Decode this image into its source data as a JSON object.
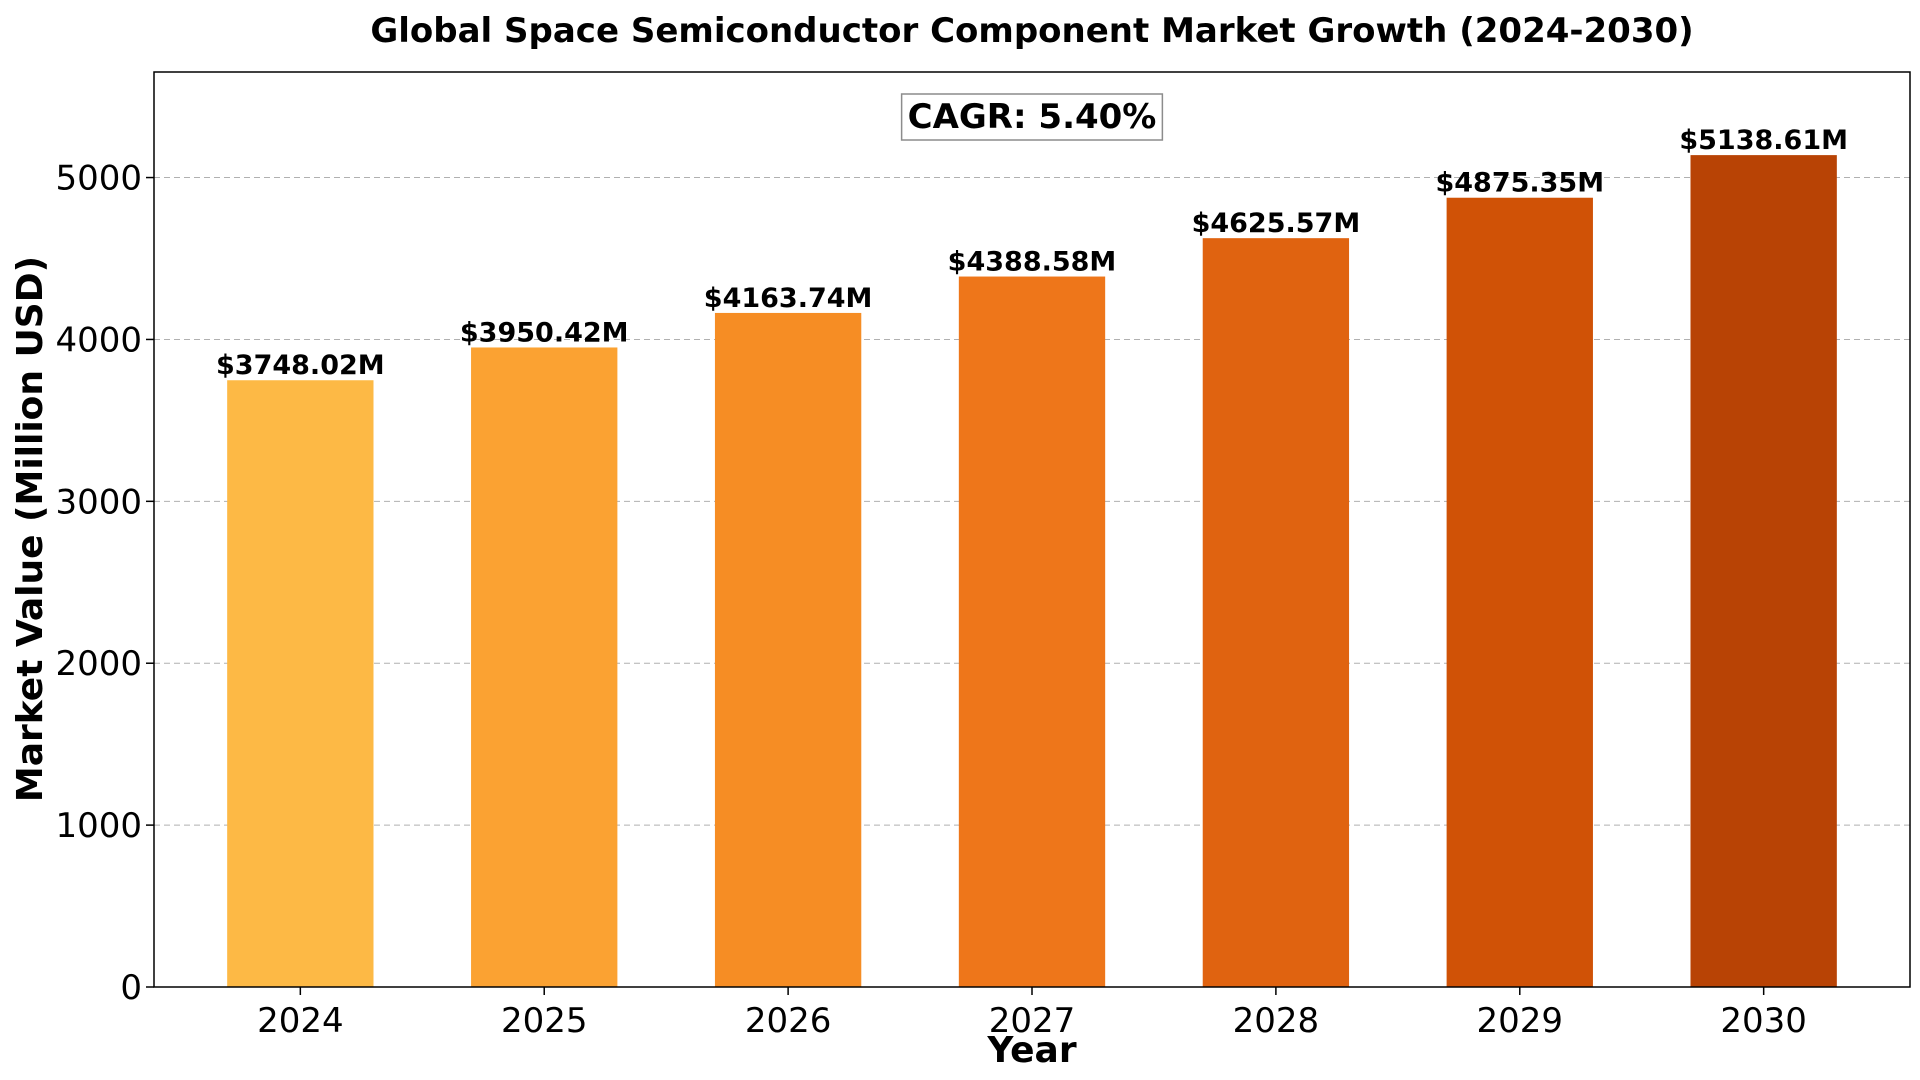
{
  "chart_data": {
    "type": "bar",
    "title": "Global Space Semiconductor Component Market Growth (2024-2030)",
    "xlabel": "Year",
    "ylabel": "Market Value (Million USD)",
    "categories": [
      "2024",
      "2025",
      "2026",
      "2027",
      "2028",
      "2029",
      "2030"
    ],
    "values": [
      3748.02,
      3950.42,
      4163.74,
      4388.58,
      4625.57,
      4875.35,
      5138.61
    ],
    "value_labels": [
      "$3748.02M",
      "$3950.42M",
      "$4163.74M",
      "$4388.58M",
      "$4625.57M",
      "$4875.35M",
      "$5138.61M"
    ],
    "bar_colors": [
      "#FDB945",
      "#FBA232",
      "#F68D24",
      "#EE761A",
      "#E06310",
      "#D05206",
      "#B84305"
    ],
    "ylim": [
      0,
      5652
    ],
    "yticks": [
      0,
      1000,
      2000,
      3000,
      4000,
      5000
    ],
    "grid": "y-dashed",
    "annotation": "CAGR: 5.40%"
  }
}
